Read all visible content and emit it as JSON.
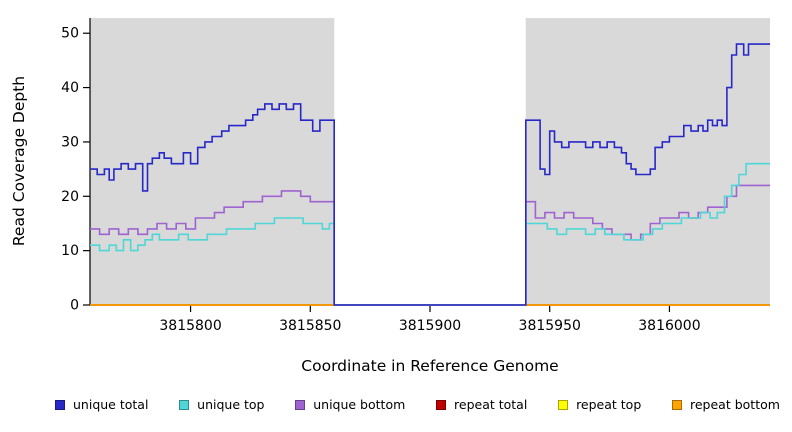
{
  "chart_data": {
    "type": "line",
    "subtype": "step-coverage",
    "title": "",
    "xlabel": "Coordinate in Reference Genome",
    "ylabel": "Read Coverage Depth",
    "xlim": [
      3815758,
      3816042
    ],
    "ylim": [
      0,
      52.8
    ],
    "xticks": [
      3815800,
      3815850,
      3815900,
      3815950,
      3816000
    ],
    "yticks": [
      0,
      10,
      20,
      30,
      40,
      50
    ],
    "grid": false,
    "plot_background": "#d9d9d9",
    "gap_region": [
      3815860,
      3815940
    ],
    "shaded_regions": [
      [
        3815758,
        3815860
      ],
      [
        3815940,
        3816042
      ]
    ],
    "series": [
      {
        "name": "repeat top",
        "color": "#ffff00",
        "points": [
          [
            3815758,
            0
          ],
          [
            3816042,
            0
          ]
        ]
      },
      {
        "name": "repeat total",
        "color": "#c00000",
        "points": [
          [
            3815758,
            0
          ],
          [
            3816042,
            0
          ]
        ]
      },
      {
        "name": "repeat bottom",
        "color": "#ffa500",
        "points": [
          [
            3815758,
            0
          ],
          [
            3816042,
            0
          ]
        ]
      },
      {
        "name": "unique bottom",
        "color": "#9e63d1",
        "points": [
          [
            3815758,
            14
          ],
          [
            3815762,
            13
          ],
          [
            3815766,
            14
          ],
          [
            3815770,
            13
          ],
          [
            3815774,
            14
          ],
          [
            3815778,
            13
          ],
          [
            3815782,
            14
          ],
          [
            3815786,
            15
          ],
          [
            3815790,
            14
          ],
          [
            3815794,
            15
          ],
          [
            3815798,
            14
          ],
          [
            3815802,
            16
          ],
          [
            3815806,
            16
          ],
          [
            3815810,
            17
          ],
          [
            3815814,
            18
          ],
          [
            3815818,
            18
          ],
          [
            3815822,
            19
          ],
          [
            3815826,
            19
          ],
          [
            3815830,
            20
          ],
          [
            3815834,
            20
          ],
          [
            3815838,
            21
          ],
          [
            3815842,
            21
          ],
          [
            3815846,
            20
          ],
          [
            3815850,
            19
          ],
          [
            3815855,
            19
          ],
          [
            3815860,
            0
          ],
          [
            3815940,
            19
          ],
          [
            3815944,
            16
          ],
          [
            3815948,
            17
          ],
          [
            3815952,
            16
          ],
          [
            3815956,
            17
          ],
          [
            3815960,
            16
          ],
          [
            3815964,
            16
          ],
          [
            3815968,
            15
          ],
          [
            3815972,
            14
          ],
          [
            3815976,
            13
          ],
          [
            3815980,
            13
          ],
          [
            3815984,
            12
          ],
          [
            3815988,
            13
          ],
          [
            3815992,
            15
          ],
          [
            3815996,
            16
          ],
          [
            3816000,
            16
          ],
          [
            3816004,
            17
          ],
          [
            3816008,
            16
          ],
          [
            3816012,
            17
          ],
          [
            3816016,
            18
          ],
          [
            3816020,
            18
          ],
          [
            3816024,
            20
          ],
          [
            3816028,
            22
          ],
          [
            3816042,
            22
          ]
        ]
      },
      {
        "name": "unique top",
        "color": "#4fd6d6",
        "points": [
          [
            3815758,
            11
          ],
          [
            3815762,
            10
          ],
          [
            3815766,
            11
          ],
          [
            3815769,
            10
          ],
          [
            3815772,
            12
          ],
          [
            3815775,
            10
          ],
          [
            3815778,
            11
          ],
          [
            3815781,
            12
          ],
          [
            3815784,
            13
          ],
          [
            3815787,
            12
          ],
          [
            3815791,
            12
          ],
          [
            3815795,
            13
          ],
          [
            3815799,
            12
          ],
          [
            3815803,
            12
          ],
          [
            3815807,
            13
          ],
          [
            3815811,
            13
          ],
          [
            3815815,
            14
          ],
          [
            3815819,
            14
          ],
          [
            3815823,
            14
          ],
          [
            3815827,
            15
          ],
          [
            3815831,
            15
          ],
          [
            3815835,
            16
          ],
          [
            3815839,
            16
          ],
          [
            3815843,
            16
          ],
          [
            3815847,
            15
          ],
          [
            3815851,
            15
          ],
          [
            3815855,
            14
          ],
          [
            3815858,
            15
          ],
          [
            3815860,
            0
          ],
          [
            3815940,
            15
          ],
          [
            3815945,
            15
          ],
          [
            3815949,
            14
          ],
          [
            3815953,
            13
          ],
          [
            3815957,
            14
          ],
          [
            3815961,
            14
          ],
          [
            3815965,
            13
          ],
          [
            3815969,
            14
          ],
          [
            3815973,
            13
          ],
          [
            3815977,
            13
          ],
          [
            3815981,
            12
          ],
          [
            3815985,
            12
          ],
          [
            3815989,
            13
          ],
          [
            3815993,
            14
          ],
          [
            3815997,
            15
          ],
          [
            3816001,
            15
          ],
          [
            3816005,
            16
          ],
          [
            3816009,
            16
          ],
          [
            3816013,
            17
          ],
          [
            3816017,
            16
          ],
          [
            3816020,
            17
          ],
          [
            3816023,
            20
          ],
          [
            3816026,
            22
          ],
          [
            3816029,
            24
          ],
          [
            3816032,
            26
          ],
          [
            3816042,
            26
          ]
        ]
      },
      {
        "name": "unique total",
        "color": "#2828c8",
        "points": [
          [
            3815758,
            25
          ],
          [
            3815761,
            24
          ],
          [
            3815764,
            25
          ],
          [
            3815766,
            23
          ],
          [
            3815768,
            25
          ],
          [
            3815771,
            26
          ],
          [
            3815774,
            25
          ],
          [
            3815777,
            26
          ],
          [
            3815780,
            21
          ],
          [
            3815782,
            26
          ],
          [
            3815784,
            27
          ],
          [
            3815787,
            28
          ],
          [
            3815789,
            27
          ],
          [
            3815792,
            26
          ],
          [
            3815797,
            28
          ],
          [
            3815800,
            26
          ],
          [
            3815803,
            29
          ],
          [
            3815806,
            30
          ],
          [
            3815809,
            31
          ],
          [
            3815813,
            32
          ],
          [
            3815816,
            33
          ],
          [
            3815820,
            33
          ],
          [
            3815823,
            34
          ],
          [
            3815826,
            35
          ],
          [
            3815828,
            36
          ],
          [
            3815831,
            37
          ],
          [
            3815834,
            36
          ],
          [
            3815837,
            37
          ],
          [
            3815840,
            36
          ],
          [
            3815843,
            37
          ],
          [
            3815846,
            34
          ],
          [
            3815849,
            34
          ],
          [
            3815851,
            32
          ],
          [
            3815854,
            34
          ],
          [
            3815860,
            0
          ],
          [
            3815940,
            34
          ],
          [
            3815944,
            34
          ],
          [
            3815946,
            25
          ],
          [
            3815948,
            24
          ],
          [
            3815950,
            32
          ],
          [
            3815952,
            30
          ],
          [
            3815955,
            29
          ],
          [
            3815958,
            30
          ],
          [
            3815962,
            30
          ],
          [
            3815965,
            29
          ],
          [
            3815968,
            30
          ],
          [
            3815971,
            29
          ],
          [
            3815974,
            30
          ],
          [
            3815977,
            29
          ],
          [
            3815980,
            28
          ],
          [
            3815982,
            26
          ],
          [
            3815984,
            25
          ],
          [
            3815986,
            24
          ],
          [
            3815989,
            24
          ],
          [
            3815992,
            25
          ],
          [
            3815994,
            29
          ],
          [
            3815997,
            30
          ],
          [
            3816000,
            31
          ],
          [
            3816003,
            31
          ],
          [
            3816006,
            33
          ],
          [
            3816009,
            32
          ],
          [
            3816012,
            33
          ],
          [
            3816014,
            32
          ],
          [
            3816016,
            34
          ],
          [
            3816018,
            33
          ],
          [
            3816020,
            34
          ],
          [
            3816022,
            33
          ],
          [
            3816024,
            40
          ],
          [
            3816026,
            46
          ],
          [
            3816028,
            48
          ],
          [
            3816031,
            46
          ],
          [
            3816033,
            48
          ],
          [
            3816042,
            48
          ]
        ]
      }
    ],
    "legend": {
      "position": "bottom",
      "entries": [
        {
          "label": "unique total",
          "color": "#2828c8"
        },
        {
          "label": "unique top",
          "color": "#4fd6d6"
        },
        {
          "label": "unique bottom",
          "color": "#9e63d1"
        },
        {
          "label": "repeat total",
          "color": "#c00000"
        },
        {
          "label": "repeat top",
          "color": "#ffff00"
        },
        {
          "label": "repeat bottom",
          "color": "#ffa500"
        }
      ]
    }
  }
}
